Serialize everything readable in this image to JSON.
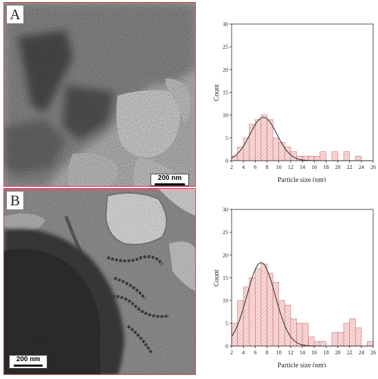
{
  "panels": [
    {
      "label": "A",
      "scale_label": "200 nm"
    },
    {
      "label": "B",
      "scale_label": "200 nm"
    }
  ],
  "colors": {
    "bar_fill": "#f7d9d9",
    "bar_stroke": "#d06a6a",
    "hatch": "#e08585",
    "fit_curve": "#333333",
    "panel_border": "#b94747"
  },
  "chart_data": [
    {
      "type": "bar",
      "xlabel": "Particle size (nm)",
      "ylabel": "Count",
      "xlim": [
        2,
        26
      ],
      "ylim": [
        0,
        30
      ],
      "xticks": [
        2,
        4,
        6,
        8,
        10,
        12,
        14,
        16,
        18,
        20,
        22,
        24,
        26
      ],
      "yticks": [
        0,
        5,
        10,
        15,
        20,
        25,
        30
      ],
      "bin_width": 1,
      "bins": [
        2.5,
        3.5,
        4.5,
        5.5,
        6.5,
        7.5,
        8.5,
        9.5,
        10.5,
        11.5,
        12.5,
        13.5,
        14.5,
        15.5,
        16.5,
        17.5,
        18.5,
        19.5,
        20.5,
        21.5,
        22.5,
        23.5
      ],
      "values": [
        1,
        3,
        5,
        8,
        9,
        10,
        9,
        5,
        4,
        3,
        2,
        1,
        1,
        1,
        1,
        2,
        0,
        2,
        0,
        2,
        0,
        1
      ],
      "fit": {
        "type": "gaussian",
        "mean": 7.4,
        "sd": 2.3,
        "peak": 9.5
      },
      "grid": false
    },
    {
      "type": "bar",
      "xlabel": "Particle size (nm)",
      "ylabel": "Count",
      "xlim": [
        2,
        26
      ],
      "ylim": [
        0,
        30
      ],
      "xticks": [
        2,
        4,
        6,
        8,
        10,
        12,
        14,
        16,
        18,
        20,
        22,
        24,
        26
      ],
      "yticks": [
        0,
        5,
        10,
        15,
        20,
        25,
        30
      ],
      "bin_width": 1,
      "bins": [
        2.5,
        3.5,
        4.5,
        5.5,
        6.5,
        7.5,
        8.5,
        9.5,
        10.5,
        11.5,
        12.5,
        13.5,
        14.5,
        15.5,
        16.5,
        17.5,
        18.5,
        19.5,
        20.5,
        21.5,
        22.5,
        23.5,
        24.5,
        25.5
      ],
      "values": [
        5,
        10,
        13,
        15,
        17,
        18,
        16,
        14,
        10,
        9,
        6,
        5,
        5,
        2,
        1,
        1,
        0,
        3,
        3,
        5,
        6,
        4,
        0,
        1
      ],
      "fit": {
        "type": "gaussian",
        "mean": 7.0,
        "sd": 2.4,
        "peak": 18.3
      },
      "grid": false
    }
  ]
}
